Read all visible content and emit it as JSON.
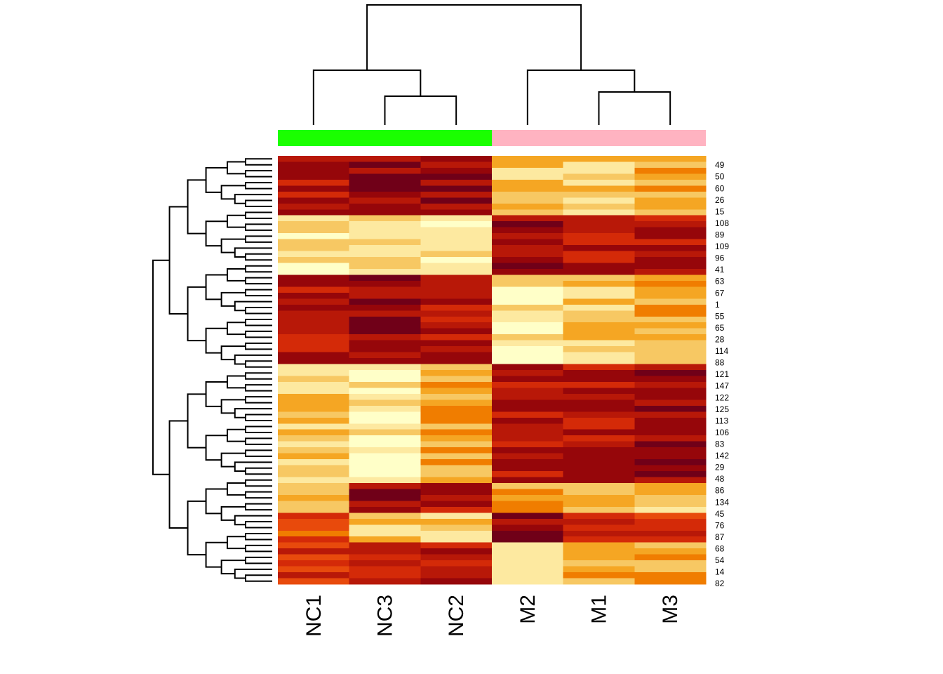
{
  "chart_data": {
    "type": "heatmap",
    "columns": [
      "NC1",
      "NC3",
      "NC2",
      "M2",
      "M1",
      "M3"
    ],
    "column_groups": [
      {
        "color": "#1aff00",
        "columns": [
          "NC1",
          "NC3",
          "NC2"
        ]
      },
      {
        "color": "#ffb3c1",
        "columns": [
          "M2",
          "M1",
          "M3"
        ]
      }
    ],
    "row_labels_shown": [
      "49",
      "50",
      "60",
      "26",
      "15",
      "108",
      "89",
      "109",
      "96",
      "41",
      "63",
      "67",
      "1",
      "55",
      "65",
      "28",
      "114",
      "88",
      "121",
      "147",
      "122",
      "125",
      "113",
      "106",
      "83",
      "142",
      "29",
      "48",
      "86",
      "134",
      "45",
      "76",
      "87",
      "68",
      "54",
      "14",
      "82"
    ],
    "row_count": 72,
    "color_scale": [
      "#ffffc8",
      "#fde9a0",
      "#f7c863",
      "#f5a623",
      "#f07d00",
      "#e84a0c",
      "#d42a08",
      "#b81808",
      "#96060a",
      "#700018"
    ],
    "value_range": [
      0,
      9
    ],
    "row_blocks": [
      {
        "rows": 10,
        "values": [
          7,
          8,
          8,
          2,
          2,
          3
        ]
      },
      {
        "rows": 10,
        "values": [
          1,
          2,
          1,
          8,
          7,
          7
        ]
      },
      {
        "rows": 15,
        "values": [
          7,
          8,
          7,
          1,
          2,
          3
        ]
      },
      {
        "rows": 20,
        "values": [
          2,
          1,
          3,
          7,
          7,
          8
        ]
      },
      {
        "rows": 5,
        "values": [
          3,
          8,
          7,
          3,
          2,
          2
        ]
      },
      {
        "rows": 5,
        "values": [
          5,
          2,
          2,
          8,
          7,
          6
        ]
      },
      {
        "rows": 7,
        "values": [
          6,
          7,
          7,
          2,
          3,
          3
        ]
      }
    ],
    "column_dendrogram": "((NC1,(NC3,NC2)),(M2,(M1,M3)))",
    "legend": "none",
    "grid": false
  }
}
